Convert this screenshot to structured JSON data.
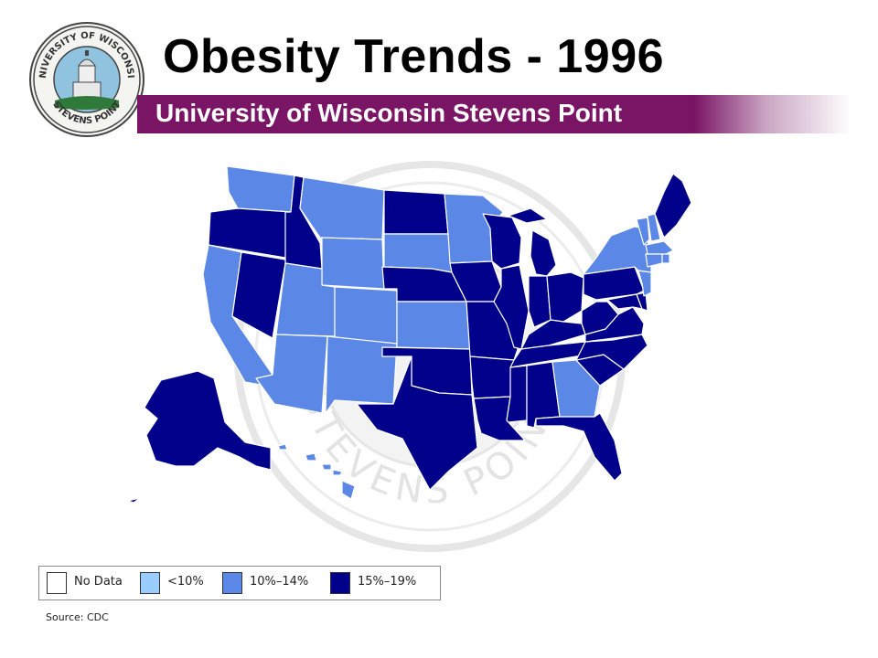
{
  "header": {
    "title": "Obesity Trends - 1996",
    "subtitle": "University of Wisconsin Stevens Point"
  },
  "seal": {
    "top_text": "UNIVERSITY OF WISCONSIN",
    "bottom_text": "STEVENS POINT"
  },
  "watermark": {
    "text": "STEVENS POINT"
  },
  "colors": {
    "no_data": "#ffffff",
    "lt10": "#99ccff",
    "p10_14": "#5b87e6",
    "p15_19": "#00008b",
    "banner": "#7a1464"
  },
  "legend": {
    "items": [
      {
        "label": "No Data",
        "color": "#ffffff"
      },
      {
        "label": "<10%",
        "color": "#99ccff"
      },
      {
        "label": "10%–14%",
        "color": "#5b87e6"
      },
      {
        "label": "15%–19%",
        "color": "#00008b"
      }
    ]
  },
  "map_data": {
    "states_10_14": [
      "WA",
      "CA",
      "MT",
      "WY",
      "UT",
      "CO",
      "AZ",
      "NM",
      "SD",
      "KS",
      "MN",
      "NY",
      "VT",
      "NH",
      "MA",
      "CT",
      "RI",
      "NJ",
      "GA",
      "HI"
    ],
    "states_15_19": [
      "OR",
      "ID",
      "NV",
      "ND",
      "NE",
      "OK",
      "TX",
      "IA",
      "MO",
      "AR",
      "LA",
      "WI",
      "IL",
      "MI",
      "IN",
      "OH",
      "KY",
      "TN",
      "MS",
      "AL",
      "FL",
      "SC",
      "NC",
      "VA",
      "WV",
      "PA",
      "MD",
      "DE",
      "ME",
      "AK"
    ]
  },
  "source": "Source: CDC"
}
